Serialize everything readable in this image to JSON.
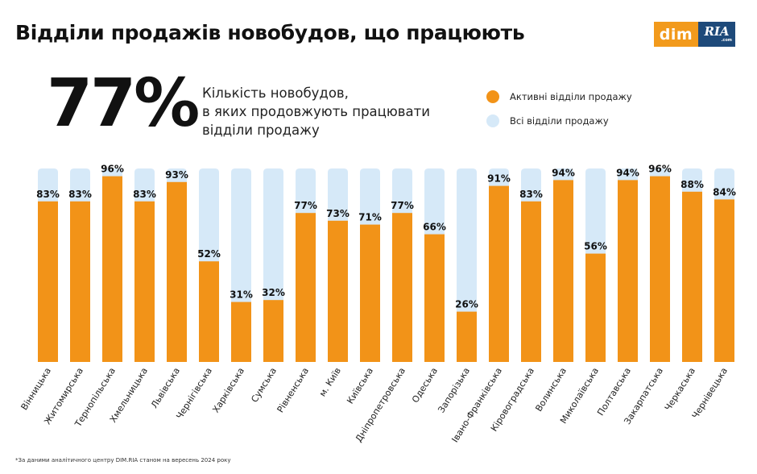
{
  "header": {
    "title": "Відділи продажів новобудов, що працюють",
    "logo_dim": "dim",
    "logo_ria": "RIA",
    "logo_ria_domain": ".com"
  },
  "summary": {
    "value": "77%",
    "description_lines": [
      "Кількість новобудов,",
      "в яких продовжують працювати",
      "відділи продажу"
    ]
  },
  "legend": [
    {
      "label": "Активні відділи продажу",
      "color": "#f29318"
    },
    {
      "label": "Всі відділи продажу",
      "color": "#d6e9f8"
    }
  ],
  "chart_data": {
    "type": "bar",
    "categories": [
      "Вінницька",
      "Житомирська",
      "Тернопільська",
      "Хмельницька",
      "Львівська",
      "Чернігівська",
      "Харківська",
      "Сумська",
      "Рівненська",
      "м. Київ",
      "Київська",
      "Дніпропетровська",
      "Одеська",
      "Запорізька",
      "Івано-Франківська",
      "Кіровоградська",
      "Волинська",
      "Миколаївська",
      "Полтавська",
      "Закарпатська",
      "Черкаська",
      "Чернівецька"
    ],
    "series": [
      {
        "name": "Активні відділи продажу",
        "values": [
          83,
          83,
          96,
          83,
          93,
          52,
          31,
          32,
          77,
          73,
          71,
          77,
          66,
          26,
          91,
          83,
          94,
          56,
          94,
          96,
          88,
          84
        ]
      },
      {
        "name": "Всі відділи продажу",
        "values": [
          100,
          100,
          100,
          100,
          100,
          100,
          100,
          100,
          100,
          100,
          100,
          100,
          100,
          100,
          100,
          100,
          100,
          100,
          100,
          100,
          100,
          100
        ]
      }
    ],
    "value_suffix": "%",
    "ylim": [
      0,
      100
    ],
    "grid": false,
    "legend_position": "top-right",
    "colors": {
      "active": "#f29318",
      "total": "#d6e9f8"
    }
  },
  "footnote": "*За даними аналітичного центру DIM.RIA станом на вересень 2024 року"
}
